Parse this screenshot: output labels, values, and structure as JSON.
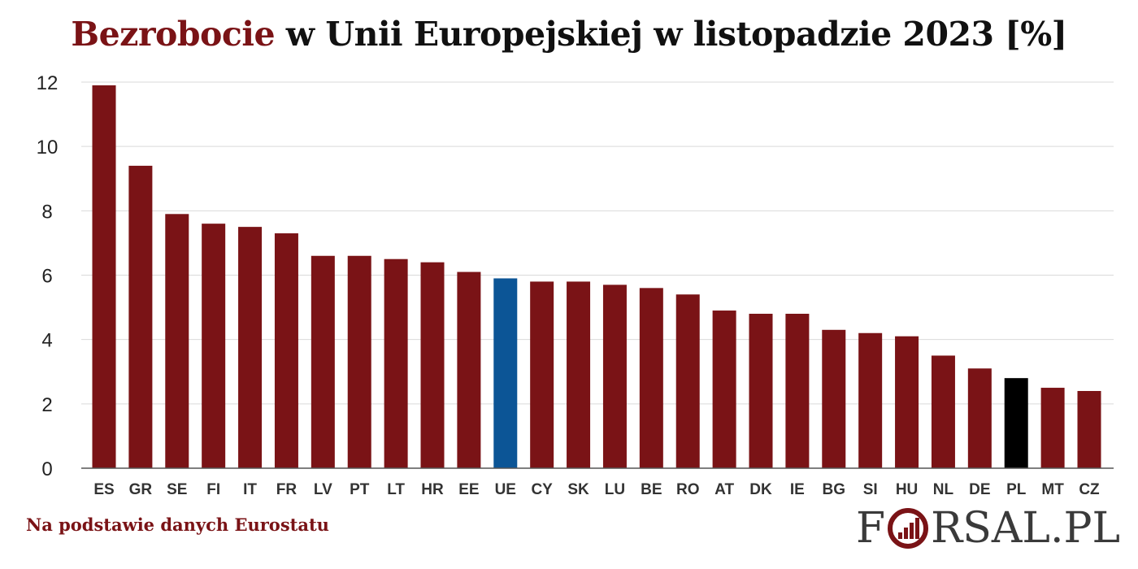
{
  "title": {
    "highlight": "Bezrobocie",
    "rest": " w Unii Europejskiej w listopadzie 2023 [%]"
  },
  "source": "Na podstawie danych Eurostatu",
  "logo": {
    "text_before": "F",
    "text_after": "RSAL.PL"
  },
  "colors": {
    "default_bar": "#7a1316",
    "eu_bar": "#0c5596",
    "pl_bar": "#000000"
  },
  "chart_data": {
    "type": "bar",
    "categories": [
      "ES",
      "GR",
      "SE",
      "FI",
      "IT",
      "FR",
      "LV",
      "PT",
      "LT",
      "HR",
      "EE",
      "UE",
      "CY",
      "SK",
      "LU",
      "BE",
      "RO",
      "AT",
      "DK",
      "IE",
      "BG",
      "SI",
      "HU",
      "NL",
      "DE",
      "PL",
      "MT",
      "CZ"
    ],
    "values": [
      11.9,
      9.4,
      7.9,
      7.6,
      7.5,
      7.3,
      6.6,
      6.6,
      6.5,
      6.4,
      6.1,
      5.9,
      5.8,
      5.8,
      5.7,
      5.6,
      5.4,
      4.9,
      4.8,
      4.8,
      4.3,
      4.2,
      4.1,
      3.5,
      3.1,
      2.8,
      2.5,
      2.4
    ],
    "highlight": {
      "UE": "eu_bar",
      "PL": "pl_bar"
    },
    "ylim": [
      0,
      12
    ],
    "yticks": [
      0,
      2,
      4,
      6,
      8,
      10,
      12
    ],
    "grid": true
  }
}
